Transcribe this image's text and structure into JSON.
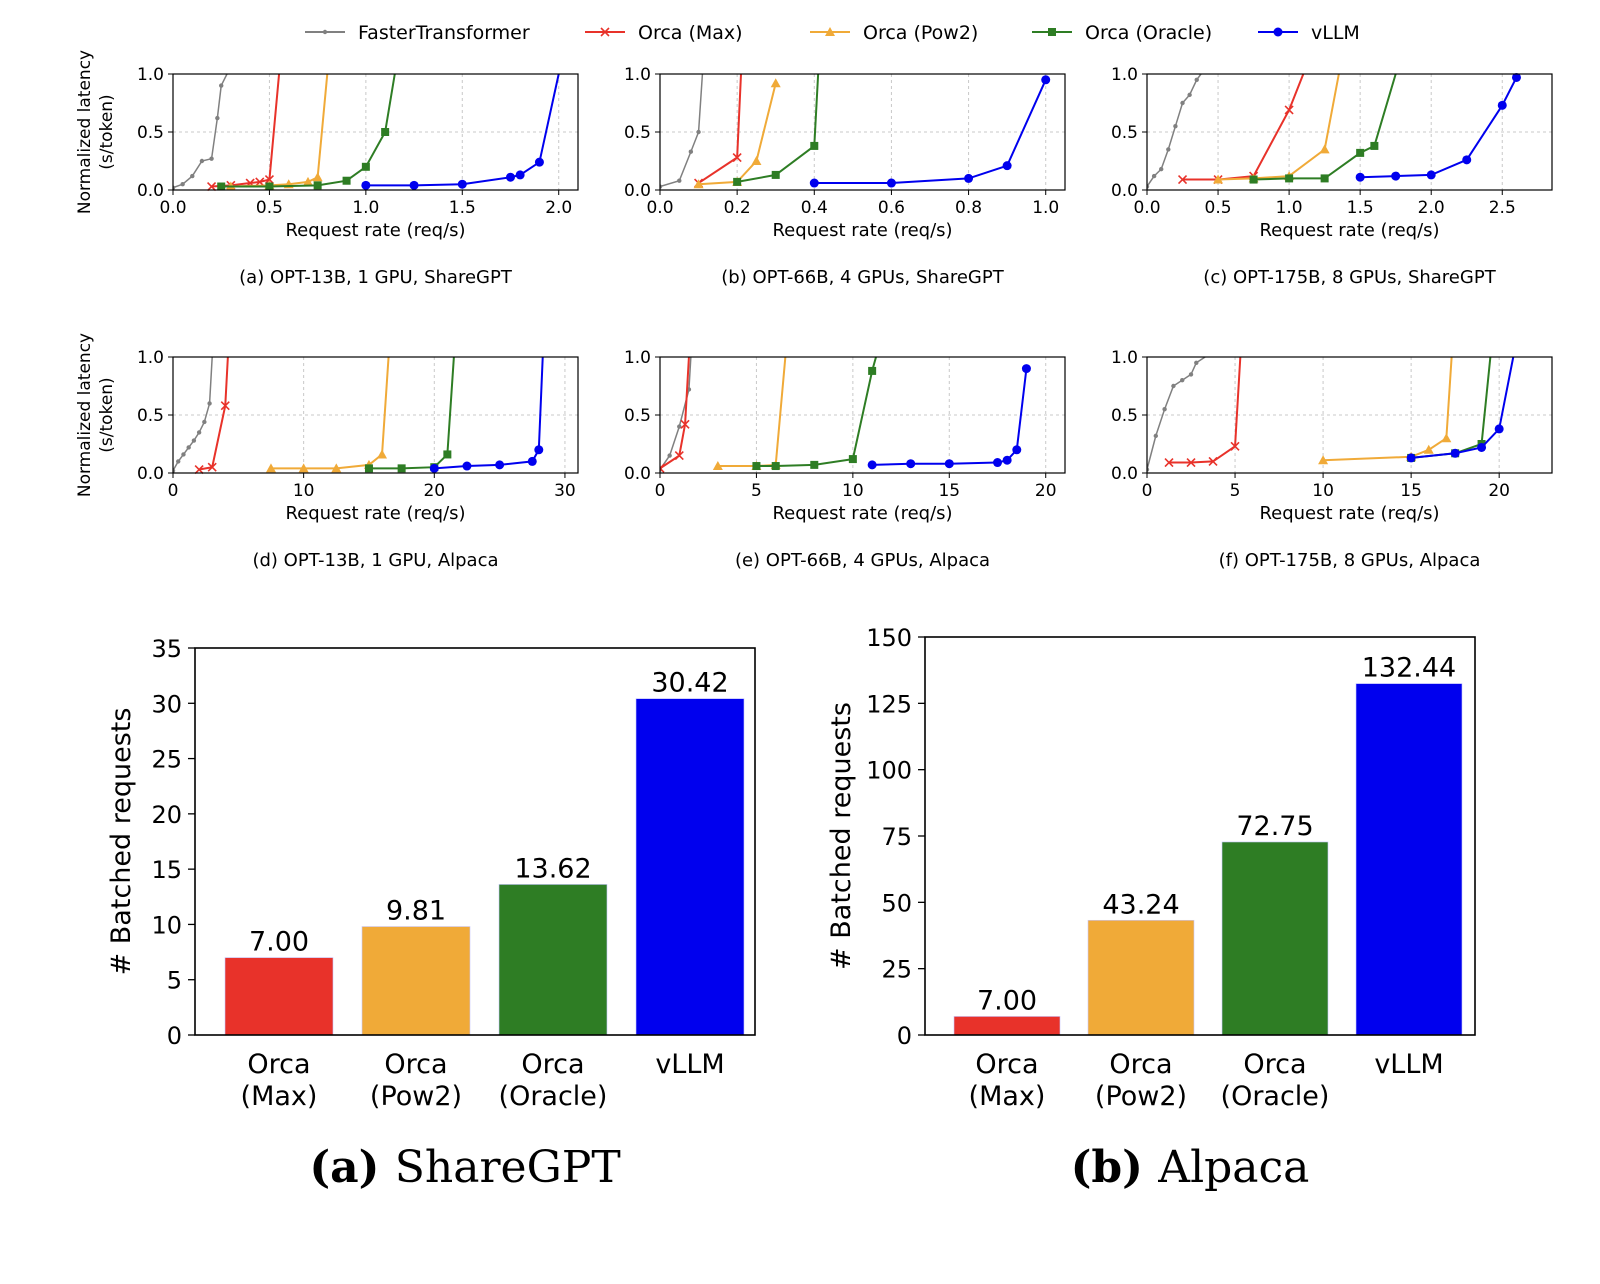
{
  "legend": [
    {
      "name": "FasterTransformer",
      "color": "#808080",
      "marker": "dot"
    },
    {
      "name": "Orca (Max)",
      "color": "#e8322a",
      "marker": "x"
    },
    {
      "name": "Orca (Pow2)",
      "color": "#f0aa38",
      "marker": "triangle"
    },
    {
      "name": "Orca (Oracle)",
      "color": "#2e7d24",
      "marker": "square"
    },
    {
      "name": "vLLM",
      "color": "#0000ee",
      "marker": "circle"
    }
  ],
  "chart_data": [
    {
      "type": "line",
      "caption": "(a) OPT-13B, 1 GPU, ShareGPT",
      "xlabel": "Request rate (req/s)",
      "ylabel": "Normalized latency\n(s/token)",
      "xlim": [
        0,
        2.1
      ],
      "ylim": [
        0,
        1.0
      ],
      "xticks": [
        "0.0",
        "0.5",
        "1.0",
        "1.5",
        "2.0"
      ],
      "xtick_values": [
        0,
        0.5,
        1.0,
        1.5,
        2.0
      ],
      "yticks": [
        "0.0",
        "0.5",
        "1.0"
      ],
      "ytick_values": [
        0,
        0.5,
        1.0
      ],
      "grid": true,
      "series": [
        {
          "name": "FasterTransformer",
          "x": [
            0,
            0.05,
            0.1,
            0.15,
            0.2,
            0.23,
            0.25,
            0.28
          ],
          "y": [
            0.02,
            0.05,
            0.12,
            0.25,
            0.27,
            0.62,
            0.9,
            1.0
          ]
        },
        {
          "name": "Orca (Max)",
          "x": [
            0.2,
            0.3,
            0.4,
            0.45,
            0.5,
            0.55
          ],
          "y": [
            0.03,
            0.04,
            0.06,
            0.07,
            0.09,
            1.0
          ]
        },
        {
          "name": "Orca (Pow2)",
          "x": [
            0.3,
            0.5,
            0.6,
            0.7,
            0.75,
            0.8
          ],
          "y": [
            0.03,
            0.04,
            0.05,
            0.07,
            0.11,
            1.0
          ]
        },
        {
          "name": "Orca (Oracle)",
          "x": [
            0.25,
            0.5,
            0.75,
            0.9,
            1.0,
            1.1,
            1.15
          ],
          "y": [
            0.03,
            0.03,
            0.04,
            0.08,
            0.2,
            0.5,
            1.0
          ]
        },
        {
          "name": "vLLM",
          "x": [
            1.0,
            1.25,
            1.5,
            1.75,
            1.8,
            1.9,
            2.0
          ],
          "y": [
            0.04,
            0.04,
            0.05,
            0.11,
            0.13,
            0.24,
            1.0
          ]
        }
      ]
    },
    {
      "type": "line",
      "caption": "(b) OPT-66B, 4 GPUs, ShareGPT",
      "xlabel": "Request rate (req/s)",
      "ylabel": "",
      "xlim": [
        0,
        1.05
      ],
      "ylim": [
        0,
        1.0
      ],
      "xticks": [
        "0.0",
        "0.2",
        "0.4",
        "0.6",
        "0.8",
        "1.0"
      ],
      "xtick_values": [
        0,
        0.2,
        0.4,
        0.6,
        0.8,
        1.0
      ],
      "yticks": [
        "0.0",
        "0.5",
        "1.0"
      ],
      "ytick_values": [
        0,
        0.5,
        1.0
      ],
      "grid": true,
      "series": [
        {
          "name": "FasterTransformer",
          "x": [
            0,
            0.05,
            0.08,
            0.1,
            0.11
          ],
          "y": [
            0.03,
            0.08,
            0.33,
            0.5,
            1.0
          ]
        },
        {
          "name": "Orca (Max)",
          "x": [
            0.1,
            0.2,
            0.21
          ],
          "y": [
            0.06,
            0.28,
            1.0
          ]
        },
        {
          "name": "Orca (Pow2)",
          "x": [
            0.1,
            0.2,
            0.25,
            0.3
          ],
          "y": [
            0.05,
            0.07,
            0.25,
            0.92
          ]
        },
        {
          "name": "Orca (Oracle)",
          "x": [
            0.2,
            0.3,
            0.4,
            0.41
          ],
          "y": [
            0.07,
            0.13,
            0.38,
            1.0
          ]
        },
        {
          "name": "vLLM",
          "x": [
            0.4,
            0.6,
            0.8,
            0.9,
            1.0
          ],
          "y": [
            0.06,
            0.06,
            0.1,
            0.21,
            0.95
          ]
        }
      ]
    },
    {
      "type": "line",
      "caption": "(c) OPT-175B, 8 GPUs, ShareGPT",
      "xlabel": "Request rate (req/s)",
      "ylabel": "",
      "xlim": [
        0,
        2.85
      ],
      "ylim": [
        0,
        1.0
      ],
      "xticks": [
        "0.0",
        "0.5",
        "1.0",
        "1.5",
        "2.0",
        "2.5"
      ],
      "xtick_values": [
        0,
        0.5,
        1.0,
        1.5,
        2.0,
        2.5
      ],
      "yticks": [
        "0.0",
        "0.5",
        "1.0"
      ],
      "ytick_values": [
        0,
        0.5,
        1.0
      ],
      "grid": true,
      "series": [
        {
          "name": "FasterTransformer",
          "x": [
            0,
            0.05,
            0.1,
            0.15,
            0.2,
            0.25,
            0.3,
            0.35,
            0.38
          ],
          "y": [
            0.03,
            0.12,
            0.18,
            0.35,
            0.55,
            0.75,
            0.82,
            0.95,
            1.0
          ]
        },
        {
          "name": "Orca (Max)",
          "x": [
            0.25,
            0.5,
            0.75,
            1.0,
            1.1
          ],
          "y": [
            0.09,
            0.09,
            0.12,
            0.69,
            1.0
          ]
        },
        {
          "name": "Orca (Pow2)",
          "x": [
            0.5,
            0.75,
            1.0,
            1.25,
            1.35
          ],
          "y": [
            0.09,
            0.1,
            0.12,
            0.35,
            1.0
          ]
        },
        {
          "name": "Orca (Oracle)",
          "x": [
            0.75,
            1.0,
            1.25,
            1.5,
            1.6,
            1.75
          ],
          "y": [
            0.09,
            0.1,
            0.1,
            0.32,
            0.38,
            1.0
          ]
        },
        {
          "name": "vLLM",
          "x": [
            1.5,
            1.75,
            2.0,
            2.25,
            2.5,
            2.6
          ],
          "y": [
            0.11,
            0.12,
            0.13,
            0.26,
            0.73,
            0.97
          ]
        }
      ]
    },
    {
      "type": "line",
      "caption": "(d) OPT-13B, 1 GPU, Alpaca",
      "xlabel": "Request rate (req/s)",
      "ylabel": "Normalized latency\n(s/token)",
      "xlim": [
        0,
        31
      ],
      "ylim": [
        0,
        1.0
      ],
      "xticks": [
        "0",
        "10",
        "20",
        "30"
      ],
      "xtick_values": [
        0,
        10,
        20,
        30
      ],
      "yticks": [
        "0.0",
        "0.5",
        "1.0"
      ],
      "ytick_values": [
        0,
        0.5,
        1.0
      ],
      "grid": true,
      "series": [
        {
          "name": "FasterTransformer",
          "x": [
            0,
            0.4,
            0.8,
            1.2,
            1.6,
            2.0,
            2.4,
            2.8,
            3.0
          ],
          "y": [
            0.02,
            0.1,
            0.16,
            0.22,
            0.28,
            0.35,
            0.44,
            0.6,
            1.0
          ]
        },
        {
          "name": "Orca (Max)",
          "x": [
            2.0,
            3.0,
            4.0,
            4.2
          ],
          "y": [
            0.03,
            0.05,
            0.58,
            1.0
          ]
        },
        {
          "name": "Orca (Pow2)",
          "x": [
            7.5,
            10.0,
            12.5,
            15.0,
            16.0,
            16.5
          ],
          "y": [
            0.04,
            0.04,
            0.04,
            0.07,
            0.16,
            1.0
          ]
        },
        {
          "name": "Orca (Oracle)",
          "x": [
            15.0,
            17.5,
            20.0,
            21.0,
            21.5
          ],
          "y": [
            0.04,
            0.04,
            0.05,
            0.16,
            1.0
          ]
        },
        {
          "name": "vLLM",
          "x": [
            20.0,
            22.5,
            25.0,
            27.5,
            28.0,
            28.3
          ],
          "y": [
            0.04,
            0.06,
            0.07,
            0.1,
            0.2,
            1.0
          ]
        }
      ]
    },
    {
      "type": "line",
      "caption": "(e) OPT-66B, 4 GPUs, Alpaca",
      "xlabel": "Request rate (req/s)",
      "ylabel": "",
      "xlim": [
        0,
        21
      ],
      "ylim": [
        0,
        1.0
      ],
      "xticks": [
        "0",
        "5",
        "10",
        "15",
        "20"
      ],
      "xtick_values": [
        0,
        5,
        10,
        15,
        20
      ],
      "yticks": [
        "0.0",
        "0.5",
        "1.0"
      ],
      "ytick_values": [
        0,
        0.5,
        1.0
      ],
      "grid": true,
      "series": [
        {
          "name": "FasterTransformer",
          "x": [
            0,
            0.5,
            1.0,
            1.5,
            1.6
          ],
          "y": [
            0.03,
            0.15,
            0.4,
            0.72,
            1.0
          ]
        },
        {
          "name": "Orca (Max)",
          "x": [
            0,
            1.0,
            1.3,
            1.5
          ],
          "y": [
            0.04,
            0.15,
            0.42,
            1.0
          ]
        },
        {
          "name": "Orca (Pow2)",
          "x": [
            3.0,
            5.0,
            6.0,
            6.5
          ],
          "y": [
            0.06,
            0.06,
            0.07,
            1.0
          ]
        },
        {
          "name": "Orca (Oracle)",
          "x": [
            5.0,
            6.0,
            8.0,
            10.0,
            11.0,
            11.2
          ],
          "y": [
            0.06,
            0.06,
            0.07,
            0.12,
            0.88,
            1.0
          ]
        },
        {
          "name": "vLLM",
          "x": [
            11.0,
            13.0,
            15.0,
            17.5,
            18.0,
            18.5,
            19.0
          ],
          "y": [
            0.07,
            0.08,
            0.08,
            0.09,
            0.11,
            0.2,
            0.9
          ]
        }
      ]
    },
    {
      "type": "line",
      "caption": "(f) OPT-175B, 8 GPUs, Alpaca",
      "xlabel": "Request rate (req/s)",
      "ylabel": "",
      "xlim": [
        0,
        23
      ],
      "ylim": [
        0,
        1.0
      ],
      "xticks": [
        "0",
        "5",
        "10",
        "15",
        "20"
      ],
      "xtick_values": [
        0,
        5,
        10,
        15,
        20
      ],
      "yticks": [
        "0.0",
        "0.5",
        "1.0"
      ],
      "ytick_values": [
        0,
        0.5,
        1.0
      ],
      "grid": true,
      "series": [
        {
          "name": "FasterTransformer",
          "x": [
            0,
            0.5,
            1.0,
            1.5,
            2.0,
            2.5,
            2.8,
            3.3
          ],
          "y": [
            0.03,
            0.32,
            0.55,
            0.75,
            0.8,
            0.85,
            0.95,
            1.0
          ]
        },
        {
          "name": "Orca (Max)",
          "x": [
            1.25,
            2.5,
            3.75,
            5.0,
            5.3
          ],
          "y": [
            0.09,
            0.09,
            0.1,
            0.23,
            1.0
          ]
        },
        {
          "name": "Orca (Pow2)",
          "x": [
            10.0,
            15.0,
            16.0,
            17.0,
            17.3
          ],
          "y": [
            0.11,
            0.14,
            0.2,
            0.3,
            1.0
          ]
        },
        {
          "name": "Orca (Oracle)",
          "x": [
            15.0,
            17.5,
            19.0,
            19.5
          ],
          "y": [
            0.13,
            0.17,
            0.25,
            1.0
          ]
        },
        {
          "name": "vLLM",
          "x": [
            15.0,
            17.5,
            19.0,
            20.0,
            20.8
          ],
          "y": [
            0.13,
            0.17,
            0.22,
            0.38,
            1.0
          ]
        }
      ]
    },
    {
      "type": "bar",
      "caption_bold": "(a)",
      "caption_text": "ShareGPT",
      "ylabel": "# Batched requests",
      "categories": [
        "Orca\n(Max)",
        "Orca\n(Pow2)",
        "Orca\n(Oracle)",
        "vLLM"
      ],
      "values": [
        7.0,
        9.81,
        13.62,
        30.42
      ],
      "value_labels": [
        "7.00",
        "9.81",
        "13.62",
        "30.42"
      ],
      "colors": [
        "#e8322a",
        "#f0aa38",
        "#2e7d24",
        "#0000ee"
      ],
      "ylim": [
        0,
        35
      ],
      "yticks": [
        "0",
        "5",
        "10",
        "15",
        "20",
        "25",
        "30",
        "35"
      ],
      "ytick_values": [
        0,
        5,
        10,
        15,
        20,
        25,
        30,
        35
      ],
      "grid": false
    },
    {
      "type": "bar",
      "caption_bold": "(b)",
      "caption_text": "Alpaca",
      "ylabel": "# Batched requests",
      "categories": [
        "Orca\n(Max)",
        "Orca\n(Pow2)",
        "Orca\n(Oracle)",
        "vLLM"
      ],
      "values": [
        7.0,
        43.24,
        72.75,
        132.44
      ],
      "value_labels": [
        "7.00",
        "43.24",
        "72.75",
        "132.44"
      ],
      "colors": [
        "#e8322a",
        "#f0aa38",
        "#2e7d24",
        "#0000ee"
      ],
      "ylim": [
        0,
        150
      ],
      "yticks": [
        "0",
        "25",
        "50",
        "75",
        "100",
        "125",
        "150"
      ],
      "ytick_values": [
        0,
        25,
        50,
        75,
        100,
        125,
        150
      ],
      "grid": false
    }
  ]
}
